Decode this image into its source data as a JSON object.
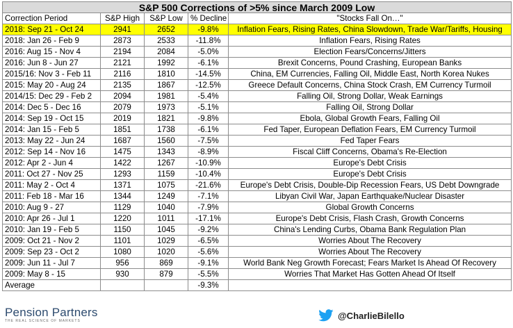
{
  "title": "S&P 500 Corrections of >5% since March 2009 Low",
  "headers": [
    "Correction Period",
    "S&P High",
    "S&P Low",
    "% Decline",
    "\"Stocks Fall On…\""
  ],
  "rows": [
    {
      "period": "2018: Sep 21 - Oct 24",
      "high": "2941",
      "low": "2652",
      "decline": "-9.8%",
      "reason": "Inflation Fears, Rising Rates, China Slowdown, Trade War/Tariffs, Housing",
      "highlight": true
    },
    {
      "period": "2018: Jan 26 - Feb 9",
      "high": "2873",
      "low": "2533",
      "decline": "-11.8%",
      "reason": "Inflation Fears, Rising Rates"
    },
    {
      "period": "2016: Aug 15 - Nov 4",
      "high": "2194",
      "low": "2084",
      "decline": "-5.0%",
      "reason": "Election Fears/Concerns/Jitters"
    },
    {
      "period": "2016: Jun 8 - Jun 27",
      "high": "2121",
      "low": "1992",
      "decline": "-6.1%",
      "reason": "Brexit Concerns, Pound Crashing, European Banks"
    },
    {
      "period": "2015/16: Nov 3 - Feb 11",
      "high": "2116",
      "low": "1810",
      "decline": "-14.5%",
      "reason": "China, EM Currencies, Falling Oil, Middle East, North Korea Nukes"
    },
    {
      "period": "2015: May 20 - Aug 24",
      "high": "2135",
      "low": "1867",
      "decline": "-12.5%",
      "reason": "Greece Default Concerns, China Stock Crash, EM Currency Turmoil"
    },
    {
      "period": "2014/15: Dec 29 - Feb 2",
      "high": "2094",
      "low": "1981",
      "decline": "-5.4%",
      "reason": "Falling Oil, Strong Dollar, Weak Earnings"
    },
    {
      "period": "2014: Dec 5 - Dec 16",
      "high": "2079",
      "low": "1973",
      "decline": "-5.1%",
      "reason": "Falling Oil, Strong Dollar"
    },
    {
      "period": "2014: Sep 19 - Oct 15",
      "high": "2019",
      "low": "1821",
      "decline": "-9.8%",
      "reason": "Ebola, Global Growth Fears, Falling Oil"
    },
    {
      "period": "2014: Jan 15 - Feb 5",
      "high": "1851",
      "low": "1738",
      "decline": "-6.1%",
      "reason": "Fed Taper, European Deflation Fears, EM Currency Turmoil"
    },
    {
      "period": "2013: May 22 - Jun 24",
      "high": "1687",
      "low": "1560",
      "decline": "-7.5%",
      "reason": "Fed Taper Fears"
    },
    {
      "period": "2012: Sep 14 - Nov 16",
      "high": "1475",
      "low": "1343",
      "decline": "-8.9%",
      "reason": "Fiscal Cliff Concerns, Obama's Re-Election"
    },
    {
      "period": "2012: Apr 2 - Jun 4",
      "high": "1422",
      "low": "1267",
      "decline": "-10.9%",
      "reason": "Europe's Debt Crisis"
    },
    {
      "period": "2011: Oct 27 - Nov 25",
      "high": "1293",
      "low": "1159",
      "decline": "-10.4%",
      "reason": "Europe's Debt Crisis"
    },
    {
      "period": "2011: May 2 - Oct 4",
      "high": "1371",
      "low": "1075",
      "decline": "-21.6%",
      "reason": "Europe's Debt Crisis, Double-Dip Recession Fears, US Debt Downgrade"
    },
    {
      "period": "2011: Feb 18 - Mar 16",
      "high": "1344",
      "low": "1249",
      "decline": "-7.1%",
      "reason": "Libyan Civil War, Japan Earthquake/Nuclear Disaster"
    },
    {
      "period": "2010: Aug 9 - 27",
      "high": "1129",
      "low": "1040",
      "decline": "-7.9%",
      "reason": "Global Growth Concerns"
    },
    {
      "period": "2010: Apr 26 - Jul 1",
      "high": "1220",
      "low": "1011",
      "decline": "-17.1%",
      "reason": "Europe's Debt Crisis, Flash Crash, Growth Concerns"
    },
    {
      "period": "2010: Jan 19 - Feb 5",
      "high": "1150",
      "low": "1045",
      "decline": "-9.2%",
      "reason": "China's Lending Curbs, Obama Bank Regulation Plan"
    },
    {
      "period": "2009: Oct 21 - Nov 2",
      "high": "1101",
      "low": "1029",
      "decline": "-6.5%",
      "reason": "Worries About The Recovery"
    },
    {
      "period": "2009: Sep 23 - Oct 2",
      "high": "1080",
      "low": "1020",
      "decline": "-5.6%",
      "reason": "Worries About The Recovery"
    },
    {
      "period": "2009: Jun 11 - Jul 7",
      "high": "956",
      "low": "869",
      "decline": "-9.1%",
      "reason": "World Bank Neg Growth Forecast; Fears Market Is Ahead Of Recovery"
    },
    {
      "period": "2009: May 8 - 15",
      "high": "930",
      "low": "879",
      "decline": "-5.5%",
      "reason": "Worries That Market Has Gotten Ahead Of Itself"
    }
  ],
  "average": {
    "label": "Average",
    "decline": "-9.3%"
  },
  "footer": {
    "logo_text": "Pension Partners",
    "logo_tagline": "THE REAL SCIENCE OF MARKETS",
    "logo_icon": "pension-partners-logo",
    "handle_icon": "twitter-bird-icon",
    "handle": "@CharlieBilello",
    "twitter_color": "#1da1f2"
  },
  "colors": {
    "highlight": "#ffff00",
    "title_bg": "#dadada",
    "border": "#8c8c8c",
    "logo_text": "#2c4a6e"
  }
}
